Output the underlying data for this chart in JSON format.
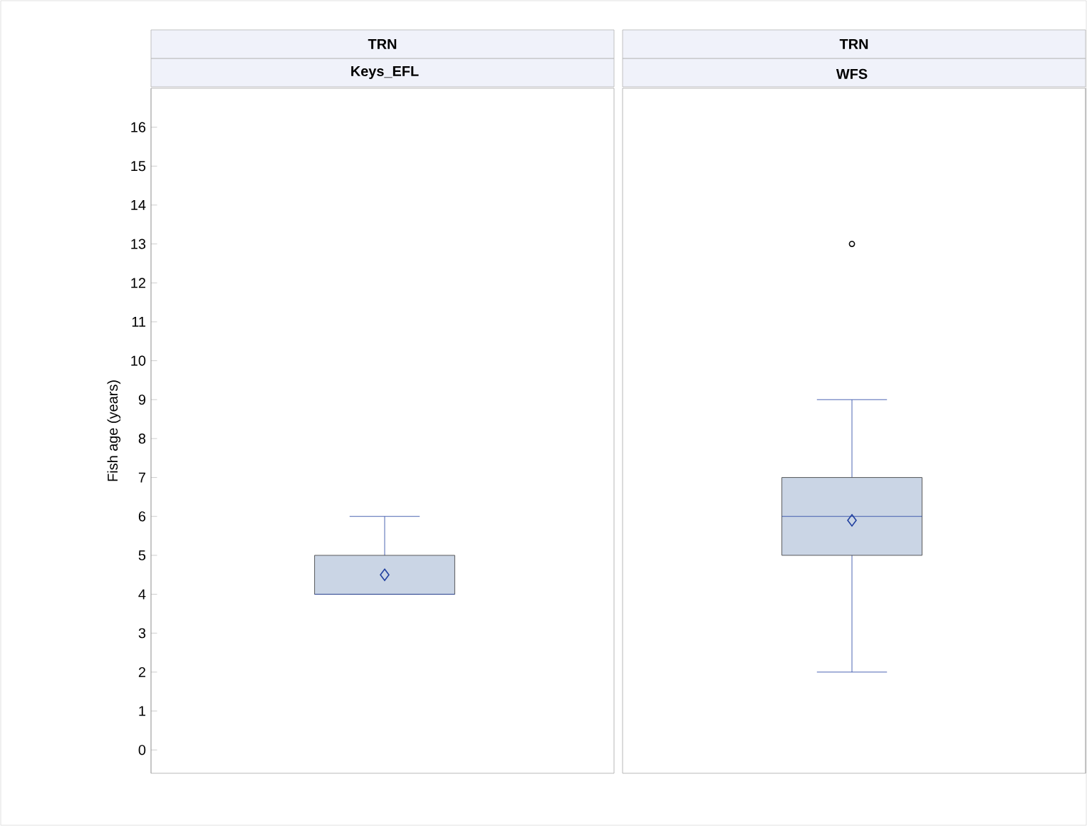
{
  "chart_data": {
    "type": "box",
    "title": "TRN",
    "ylabel": "Fish age (years)",
    "categories": [
      "Keys_EFL",
      "WFS"
    ],
    "color": "#cad5e5",
    "ylim": [
      -0.6,
      17
    ],
    "yticks": [
      0,
      1,
      2,
      3,
      4,
      5,
      6,
      7,
      8,
      9,
      10,
      11,
      12,
      13,
      14,
      15,
      16
    ],
    "boxes": [
      {
        "low": 4,
        "q1": 4,
        "median": 4,
        "q3": 5,
        "high": 6,
        "mean": 4.5
      },
      {
        "low": 2,
        "q1": 5,
        "median": 6,
        "q3": 7,
        "high": 9,
        "mean": 5.9,
        "outliers": [
          13
        ]
      }
    ]
  }
}
